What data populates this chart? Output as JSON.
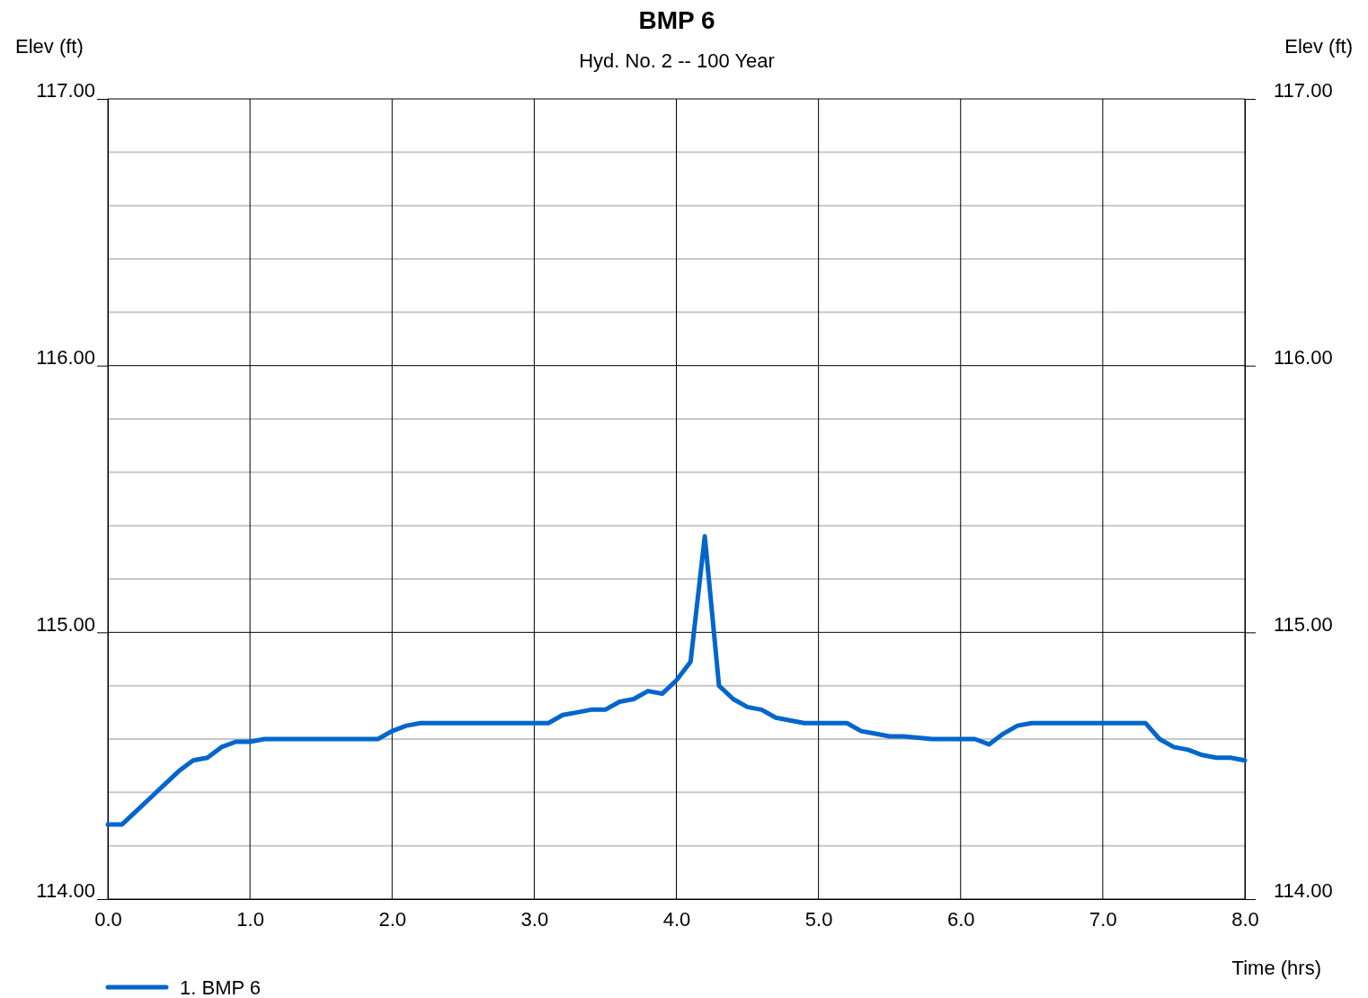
{
  "chart_data": {
    "type": "line",
    "title": "BMP 6",
    "subtitle": "Hyd. No. 2 -- 100 Year",
    "xlabel": "Time (hrs)",
    "ylabel": "Elev (ft)",
    "y2label": "Elev (ft)",
    "x": [
      0.0,
      0.1,
      0.2,
      0.3,
      0.4,
      0.5,
      0.6,
      0.7,
      0.8,
      0.9,
      1.0,
      1.1,
      1.3,
      1.9,
      2.0,
      2.1,
      2.2,
      2.5,
      3.1,
      3.2,
      3.3,
      3.4,
      3.5,
      3.6,
      3.7,
      3.8,
      3.9,
      4.0,
      4.1,
      4.2,
      4.3,
      4.4,
      4.5,
      4.6,
      4.7,
      4.8,
      4.9,
      5.0,
      5.2,
      5.3,
      5.4,
      5.5,
      5.6,
      5.8,
      6.1,
      6.2,
      6.3,
      6.4,
      6.5,
      6.6,
      7.3,
      7.4,
      7.5,
      7.6,
      7.7,
      7.8,
      7.9,
      8.0
    ],
    "series": [
      {
        "name": "1. BMP 6",
        "color": "#0066cc",
        "values": [
          114.28,
          114.28,
          114.33,
          114.38,
          114.43,
          114.48,
          114.52,
          114.53,
          114.57,
          114.59,
          114.59,
          114.6,
          114.6,
          114.6,
          114.63,
          114.65,
          114.66,
          114.66,
          114.66,
          114.69,
          114.7,
          114.71,
          114.71,
          114.74,
          114.75,
          114.78,
          114.77,
          114.82,
          114.89,
          115.36,
          114.8,
          114.75,
          114.72,
          114.71,
          114.68,
          114.67,
          114.66,
          114.66,
          114.66,
          114.63,
          114.62,
          114.61,
          114.61,
          114.6,
          114.6,
          114.58,
          114.62,
          114.65,
          114.66,
          114.66,
          114.66,
          114.6,
          114.57,
          114.56,
          114.54,
          114.53,
          114.53,
          114.52
        ]
      }
    ],
    "xlim": [
      0,
      8
    ],
    "ylim": [
      114,
      117
    ],
    "y2lim": [
      114,
      117
    ],
    "xticks": [
      {
        "value": 0,
        "label": "0.0"
      },
      {
        "value": 1,
        "label": "1.0"
      },
      {
        "value": 2,
        "label": "2.0"
      },
      {
        "value": 3,
        "label": "3.0"
      },
      {
        "value": 4,
        "label": "4.0"
      },
      {
        "value": 5,
        "label": "5.0"
      },
      {
        "value": 6,
        "label": "6.0"
      },
      {
        "value": 7,
        "label": "7.0"
      },
      {
        "value": 8,
        "label": "8.0"
      }
    ],
    "yticks": [
      {
        "value": 114,
        "label": "114.00"
      },
      {
        "value": 114.2,
        "label": null
      },
      {
        "value": 114.4,
        "label": null
      },
      {
        "value": 114.6,
        "label": null
      },
      {
        "value": 114.8,
        "label": null
      },
      {
        "value": 115,
        "label": "115.00"
      },
      {
        "value": 115.2,
        "label": null
      },
      {
        "value": 115.4,
        "label": null
      },
      {
        "value": 115.6,
        "label": null
      },
      {
        "value": 115.8,
        "label": null
      },
      {
        "value": 116,
        "label": "116.00"
      },
      {
        "value": 116.2,
        "label": null
      },
      {
        "value": 116.4,
        "label": null
      },
      {
        "value": 116.6,
        "label": null
      },
      {
        "value": 116.8,
        "label": null
      },
      {
        "value": 117,
        "label": "117.00"
      }
    ],
    "y2ticks": [
      {
        "value": 114,
        "label": "114.00"
      },
      {
        "value": 115,
        "label": "115.00"
      },
      {
        "value": 116,
        "label": "116.00"
      },
      {
        "value": 117,
        "label": "117.00"
      }
    ],
    "grid": true,
    "legend": "bottom left",
    "marker": "none",
    "line_style": "solid"
  }
}
